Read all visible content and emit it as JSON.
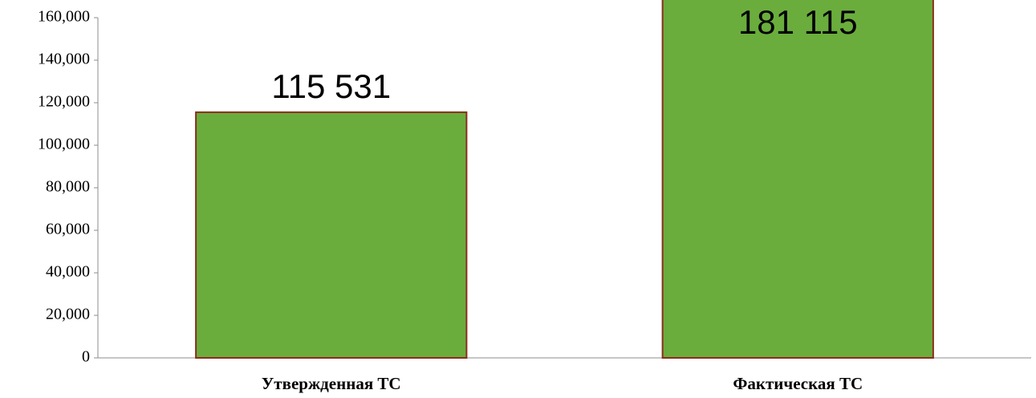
{
  "chart_data": {
    "type": "bar",
    "categories": [
      "Утвержденная ТС",
      "Фактическая ТС"
    ],
    "values": [
      115531,
      181115
    ],
    "value_labels": [
      "115 531",
      "181 115"
    ],
    "color": "#6aad3d",
    "ylim": [
      0,
      160000
    ],
    "yticks": [
      0,
      {
        "value": 20000,
        "label": "20,000"
      },
      {
        "value": 40000,
        "label": "40,000"
      },
      {
        "value": 60000,
        "label": "60,000"
      },
      {
        "value": 80000,
        "label": "80,000"
      },
      {
        "value": 100000,
        "label": "100,000"
      },
      {
        "value": 120000,
        "label": "120,000"
      },
      {
        "value": 140000,
        "label": "140,000"
      },
      {
        "value": 160000,
        "label": "160,000"
      }
    ],
    "grid": false
  }
}
